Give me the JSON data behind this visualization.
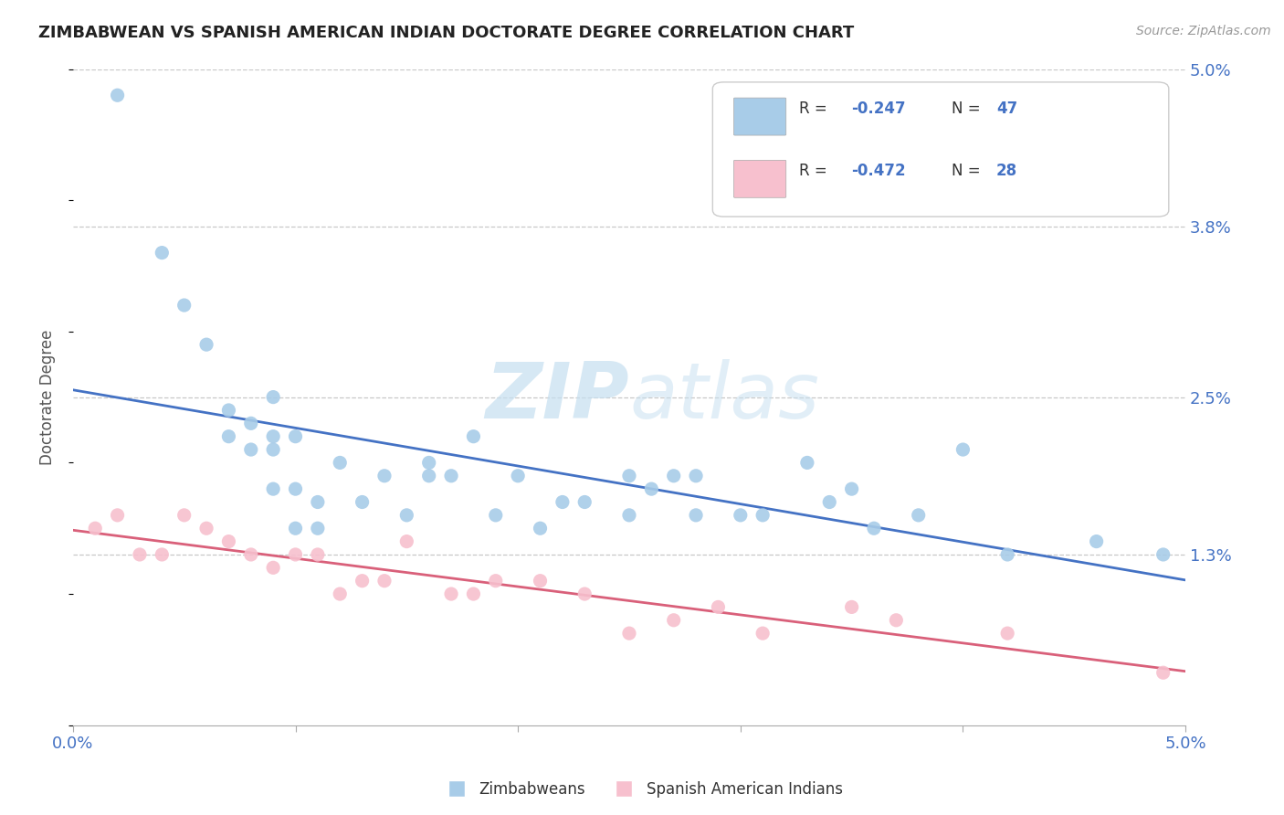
{
  "title": "ZIMBABWEAN VS SPANISH AMERICAN INDIAN DOCTORATE DEGREE CORRELATION CHART",
  "source": "Source: ZipAtlas.com",
  "ylabel": "Doctorate Degree",
  "xlim": [
    0.0,
    0.05
  ],
  "ylim": [
    0.0,
    0.05
  ],
  "x_ticks": [
    0.0,
    0.01,
    0.02,
    0.03,
    0.04,
    0.05
  ],
  "x_tick_labels": [
    "0.0%",
    "",
    "",
    "",
    "",
    "5.0%"
  ],
  "y_tick_labels_right": [
    "5.0%",
    "3.8%",
    "2.5%",
    "1.3%"
  ],
  "y_ticks_right": [
    0.05,
    0.038,
    0.025,
    0.013
  ],
  "blue_color": "#a8cce8",
  "pink_color": "#f7c0ce",
  "blue_line_color": "#4472c4",
  "pink_line_color": "#d9607a",
  "legend_blue_label_r": "R = -0.247",
  "legend_blue_label_n": "N = 47",
  "legend_pink_label_r": "R = -0.472",
  "legend_pink_label_n": "N = 28",
  "background_color": "#ffffff",
  "grid_color": "#c8c8c8",
  "watermark": "ZIPatlas",
  "legend_bottom_blue": "Zimbabweans",
  "legend_bottom_pink": "Spanish American Indians",
  "blue_scatter_x": [
    0.002,
    0.004,
    0.005,
    0.006,
    0.007,
    0.007,
    0.008,
    0.008,
    0.009,
    0.009,
    0.009,
    0.009,
    0.01,
    0.01,
    0.01,
    0.011,
    0.011,
    0.012,
    0.013,
    0.014,
    0.015,
    0.016,
    0.016,
    0.017,
    0.018,
    0.019,
    0.02,
    0.021,
    0.022,
    0.023,
    0.025,
    0.025,
    0.026,
    0.027,
    0.028,
    0.028,
    0.03,
    0.031,
    0.033,
    0.034,
    0.035,
    0.036,
    0.038,
    0.04,
    0.042,
    0.046,
    0.049
  ],
  "blue_scatter_y": [
    0.048,
    0.036,
    0.032,
    0.029,
    0.024,
    0.022,
    0.023,
    0.021,
    0.025,
    0.022,
    0.021,
    0.018,
    0.022,
    0.018,
    0.015,
    0.017,
    0.015,
    0.02,
    0.017,
    0.019,
    0.016,
    0.02,
    0.019,
    0.019,
    0.022,
    0.016,
    0.019,
    0.015,
    0.017,
    0.017,
    0.019,
    0.016,
    0.018,
    0.019,
    0.019,
    0.016,
    0.016,
    0.016,
    0.02,
    0.017,
    0.018,
    0.015,
    0.016,
    0.021,
    0.013,
    0.014,
    0.013
  ],
  "pink_scatter_x": [
    0.001,
    0.002,
    0.003,
    0.004,
    0.005,
    0.006,
    0.007,
    0.008,
    0.009,
    0.01,
    0.011,
    0.012,
    0.013,
    0.014,
    0.015,
    0.017,
    0.018,
    0.019,
    0.021,
    0.023,
    0.025,
    0.027,
    0.029,
    0.031,
    0.035,
    0.037,
    0.042,
    0.049
  ],
  "pink_scatter_y": [
    0.015,
    0.016,
    0.013,
    0.013,
    0.016,
    0.015,
    0.014,
    0.013,
    0.012,
    0.013,
    0.013,
    0.01,
    0.011,
    0.011,
    0.014,
    0.01,
    0.01,
    0.011,
    0.011,
    0.01,
    0.007,
    0.008,
    0.009,
    0.007,
    0.009,
    0.008,
    0.007,
    0.004
  ],
  "blue_line_x0": 0.0,
  "blue_line_y0": 0.025,
  "blue_line_x1": 0.05,
  "blue_line_y1": 0.013,
  "pink_line_x0": 0.0,
  "pink_line_y0": 0.015,
  "pink_line_x1": 0.05,
  "pink_line_y1": 0.0
}
